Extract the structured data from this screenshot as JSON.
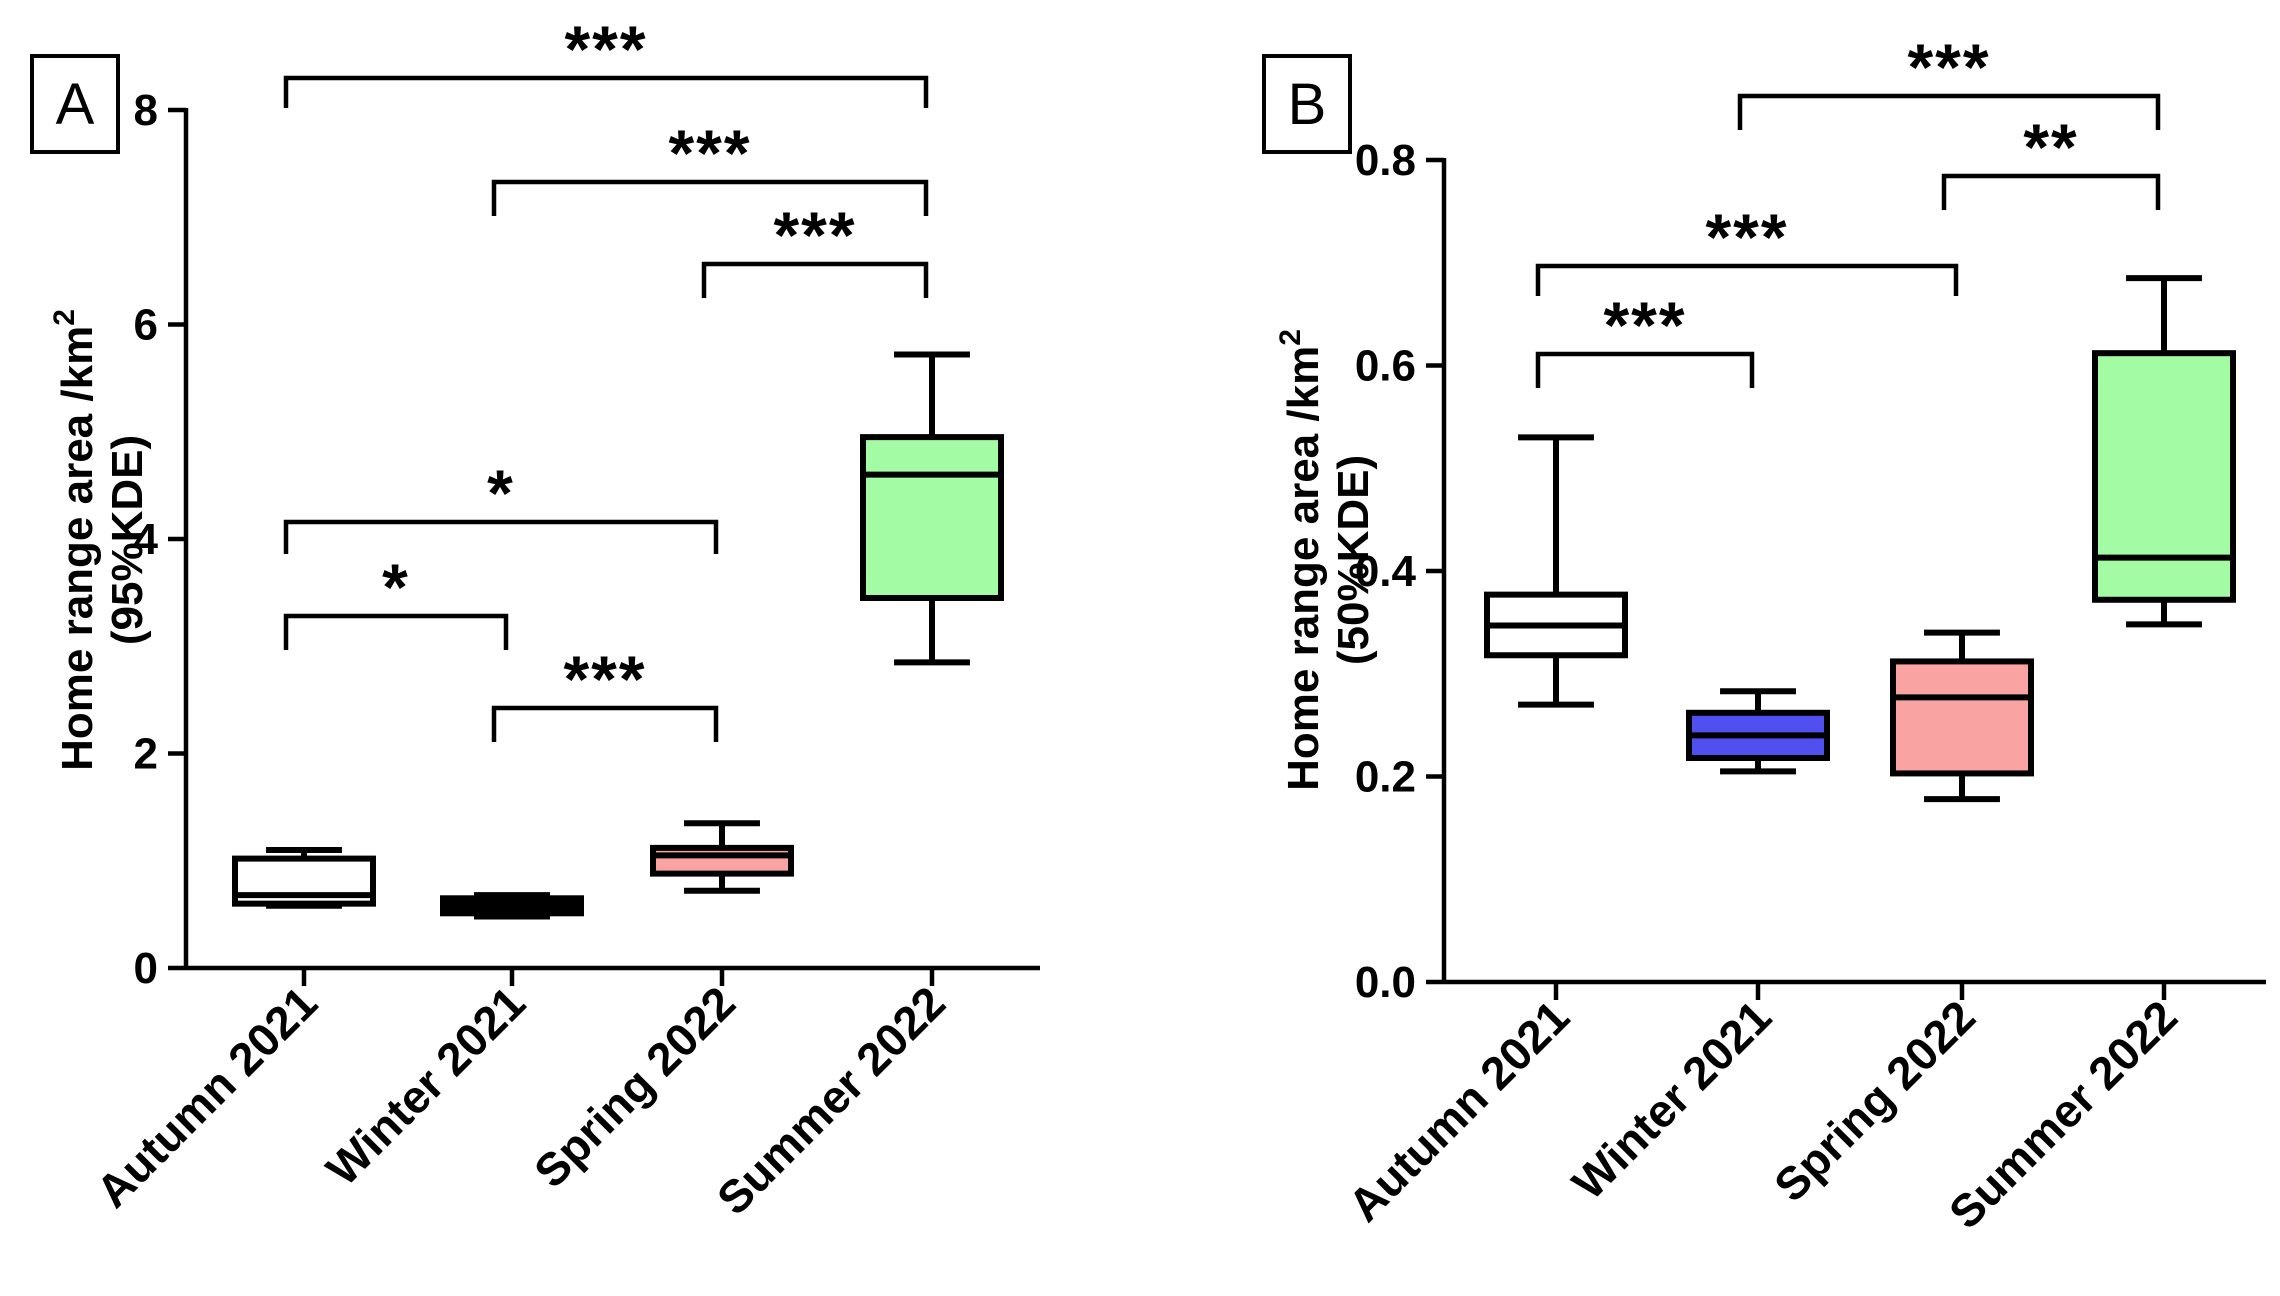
{
  "chart_data": [
    {
      "panel_label": "A",
      "type": "box",
      "ylabel_line1": "Home range area /km",
      "ylabel_sup": "2",
      "ylabel_line2": "(95%KDE)",
      "ylim": [
        0,
        8
      ],
      "yticks": [
        0,
        2,
        4,
        6,
        8
      ],
      "ytick_labels": [
        "0",
        "2",
        "4",
        "6",
        "8"
      ],
      "categories": [
        "Autumn 2021",
        "Winter 2021",
        "Spring 2022",
        "Summer 2022"
      ],
      "boxes": [
        {
          "category": "Autumn 2021",
          "min": 0.58,
          "q1": 0.6,
          "median": 0.68,
          "q3": 1.02,
          "max": 1.1,
          "color": "#ffffff"
        },
        {
          "category": "Winter 2021",
          "min": 0.48,
          "q1": 0.51,
          "median": 0.58,
          "q3": 0.65,
          "max": 0.68,
          "color": "#000000"
        },
        {
          "category": "Spring 2022",
          "min": 0.72,
          "q1": 0.88,
          "median": 1.05,
          "q3": 1.12,
          "max": 1.35,
          "color": "#f9a3a3"
        },
        {
          "category": "Summer 2022",
          "min": 2.85,
          "q1": 3.45,
          "median": 4.6,
          "q3": 4.95,
          "max": 5.72,
          "color": "#a3fba3"
        }
      ],
      "significance": [
        {
          "from": 0,
          "to": 3,
          "label": "***"
        },
        {
          "from": 1,
          "to": 3,
          "label": "***"
        },
        {
          "from": 2,
          "to": 3,
          "label": "***"
        },
        {
          "from": 0,
          "to": 2,
          "label": "*"
        },
        {
          "from": 0,
          "to": 1,
          "label": "*"
        },
        {
          "from": 1,
          "to": 2,
          "label": "***"
        }
      ]
    },
    {
      "panel_label": "B",
      "type": "box",
      "ylabel_line1": "Home range area /km",
      "ylabel_sup": "2",
      "ylabel_line2": "(50%KDE)",
      "ylim": [
        0,
        0.8
      ],
      "yticks": [
        0,
        0.2,
        0.4,
        0.6,
        0.8
      ],
      "ytick_labels": [
        "0.0",
        "0.2",
        "0.4",
        "0.6",
        "0.8"
      ],
      "categories": [
        "Autumn 2021",
        "Winter 2021",
        "Spring 2022",
        "Summer 2022"
      ],
      "boxes": [
        {
          "category": "Autumn 2021",
          "min": 0.27,
          "q1": 0.318,
          "median": 0.347,
          "q3": 0.377,
          "max": 0.53,
          "color": "#ffffff"
        },
        {
          "category": "Winter 2021",
          "min": 0.205,
          "q1": 0.218,
          "median": 0.24,
          "q3": 0.262,
          "max": 0.283,
          "color": "#5050f0"
        },
        {
          "category": "Spring 2022",
          "min": 0.178,
          "q1": 0.203,
          "median": 0.277,
          "q3": 0.312,
          "max": 0.34,
          "color": "#f9a3a3"
        },
        {
          "category": "Summer 2022",
          "min": 0.348,
          "q1": 0.372,
          "median": 0.413,
          "q3": 0.612,
          "max": 0.685,
          "color": "#a3fba3"
        }
      ],
      "significance": [
        {
          "from": 1,
          "to": 3,
          "label": "***"
        },
        {
          "from": 2,
          "to": 3,
          "label": "**"
        },
        {
          "from": 0,
          "to": 2,
          "label": "***"
        },
        {
          "from": 0,
          "to": 1,
          "label": "***"
        }
      ]
    }
  ]
}
